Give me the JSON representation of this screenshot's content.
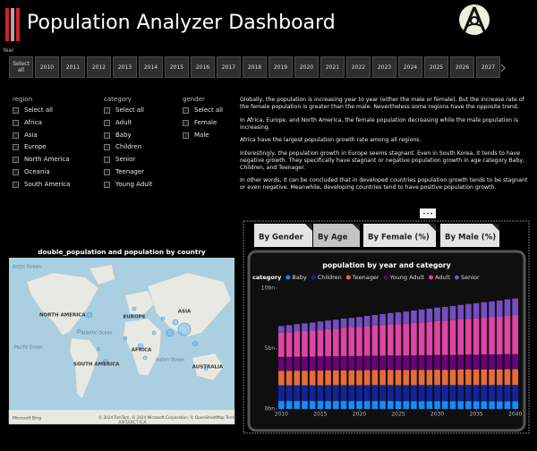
{
  "header": {
    "title": "Population Analyzer Dashboard"
  },
  "year_slicer": {
    "label": "Year",
    "options": [
      "Select all",
      "2010",
      "2011",
      "2012",
      "2013",
      "2014",
      "2015",
      "2016",
      "2017",
      "2018",
      "2019",
      "2020",
      "2021",
      "2022",
      "2023",
      "2024",
      "2025",
      "2026",
      "2027"
    ]
  },
  "slicers": [
    {
      "title": "region",
      "options": [
        "Select all",
        "Africa",
        "Asia",
        "Europe",
        "North America",
        "Oceania",
        "South America"
      ]
    },
    {
      "title": "category",
      "options": [
        "Select all",
        "Adult",
        "Baby",
        "Children",
        "Senior",
        "Teenager",
        "Young Adult"
      ]
    },
    {
      "title": "gender",
      "options": [
        "Select all",
        "Female",
        "Male"
      ]
    }
  ],
  "narrative": [
    "Globally, the population is increasing year to year (either the male or female). But the increase rate of the female population is greater than the male. Nevertheless some regions have the opposite trend.",
    "In Africa, Europe, and North America, the female population decreasing while the male population is increasing.",
    "Africa have the largest population growth rate among all regions.",
    "Interestingly, the population growth in Europe seems stagnant. Even in South Korea, it tends to have negative growth. They specifically have stagnant or negative population growth in age category Baby, Children, and Teenager.",
    "In other words, it can be concluded that in developed countries population growth tends to be stagnant or even negative. Meanwhile, developing countries tend to have positive population growth."
  ],
  "map": {
    "title": "double_population and population by country",
    "labels": [
      "Arctic Ocean",
      "NORTH AMERICA",
      "EUROPE",
      "ASIA",
      "Atlantic Ocean",
      "AFRICA",
      "Indian Ocean",
      "SOUTH AMERICA",
      "AUSTRALIA",
      "Pacific Ocean",
      "ANTARCTICA"
    ],
    "attribution": "Microsoft Bing",
    "copyright": "© 2024 TomTom, © 2024 Microsoft Corporation, © OpenStreetMap  Terms"
  },
  "tabs": [
    "By Gender",
    "By Age",
    "By Female (%)",
    "By Male (%)"
  ],
  "chart_data": {
    "type": "stacked_bar",
    "title": "population by year and category",
    "legend_title": "category",
    "x": [
      2010,
      2011,
      2012,
      2013,
      2014,
      2015,
      2016,
      2017,
      2018,
      2019,
      2020,
      2021,
      2022,
      2023,
      2024,
      2025,
      2026,
      2027,
      2028,
      2029,
      2030,
      2031,
      2032,
      2033,
      2034,
      2035,
      2036,
      2037,
      2038,
      2039,
      2040
    ],
    "xlim": [
      2009.5,
      2040.5
    ],
    "xticks": [
      2010,
      2015,
      2020,
      2025,
      2030,
      2035,
      2040
    ],
    "ylim": [
      0,
      10
    ],
    "yticks": [
      {
        "value": 0,
        "label": "0bn"
      },
      {
        "value": 5,
        "label": "5bn"
      },
      {
        "value": 10,
        "label": "10bn"
      }
    ],
    "series": [
      {
        "name": "Baby",
        "color": "#118dff",
        "values": [
          0.66,
          0.66,
          0.66,
          0.66,
          0.66,
          0.66,
          0.66,
          0.66,
          0.66,
          0.66,
          0.66,
          0.66,
          0.66,
          0.66,
          0.66,
          0.65,
          0.65,
          0.65,
          0.65,
          0.65,
          0.65,
          0.65,
          0.65,
          0.65,
          0.65,
          0.64,
          0.64,
          0.64,
          0.64,
          0.64,
          0.64
        ]
      },
      {
        "name": "Children",
        "color": "#12239e",
        "values": [
          1.3,
          1.3,
          1.3,
          1.3,
          1.3,
          1.3,
          1.31,
          1.31,
          1.31,
          1.31,
          1.31,
          1.31,
          1.32,
          1.32,
          1.32,
          1.32,
          1.32,
          1.32,
          1.33,
          1.33,
          1.33,
          1.33,
          1.33,
          1.33,
          1.34,
          1.34,
          1.34,
          1.34,
          1.34,
          1.35,
          1.35
        ]
      },
      {
        "name": "Teenager",
        "color": "#e66c37",
        "values": [
          1.2,
          1.2,
          1.21,
          1.21,
          1.21,
          1.22,
          1.22,
          1.22,
          1.23,
          1.23,
          1.23,
          1.24,
          1.24,
          1.24,
          1.25,
          1.25,
          1.25,
          1.26,
          1.26,
          1.26,
          1.27,
          1.27,
          1.27,
          1.28,
          1.28,
          1.28,
          1.29,
          1.29,
          1.29,
          1.3,
          1.3
        ]
      },
      {
        "name": "Young Adult",
        "color": "#6b007b",
        "values": [
          1.15,
          1.15,
          1.16,
          1.16,
          1.16,
          1.17,
          1.17,
          1.17,
          1.18,
          1.18,
          1.18,
          1.19,
          1.19,
          1.19,
          1.2,
          1.2,
          1.2,
          1.21,
          1.21,
          1.21,
          1.22,
          1.22,
          1.22,
          1.23,
          1.23,
          1.23,
          1.24,
          1.24,
          1.24,
          1.25,
          1.25
        ]
      },
      {
        "name": "Adult",
        "color": "#e044a7",
        "values": [
          2,
          2.04,
          2.08,
          2.12,
          2.16,
          2.2,
          2.24,
          2.28,
          2.32,
          2.36,
          2.4,
          2.44,
          2.48,
          2.52,
          2.56,
          2.6,
          2.64,
          2.68,
          2.72,
          2.76,
          2.8,
          2.84,
          2.88,
          2.92,
          2.96,
          3,
          3.04,
          3.08,
          3.12,
          3.16,
          3.2
        ]
      },
      {
        "name": "Senior",
        "color": "#744ec2",
        "values": [
          0.55,
          0.58,
          0.61,
          0.63,
          0.66,
          0.69,
          0.72,
          0.75,
          0.78,
          0.8,
          0.83,
          0.86,
          0.89,
          0.92,
          0.95,
          0.97,
          1,
          1.03,
          1.06,
          1.09,
          1.12,
          1.14,
          1.17,
          1.2,
          1.23,
          1.26,
          1.29,
          1.31,
          1.34,
          1.37,
          1.4
        ]
      }
    ]
  }
}
